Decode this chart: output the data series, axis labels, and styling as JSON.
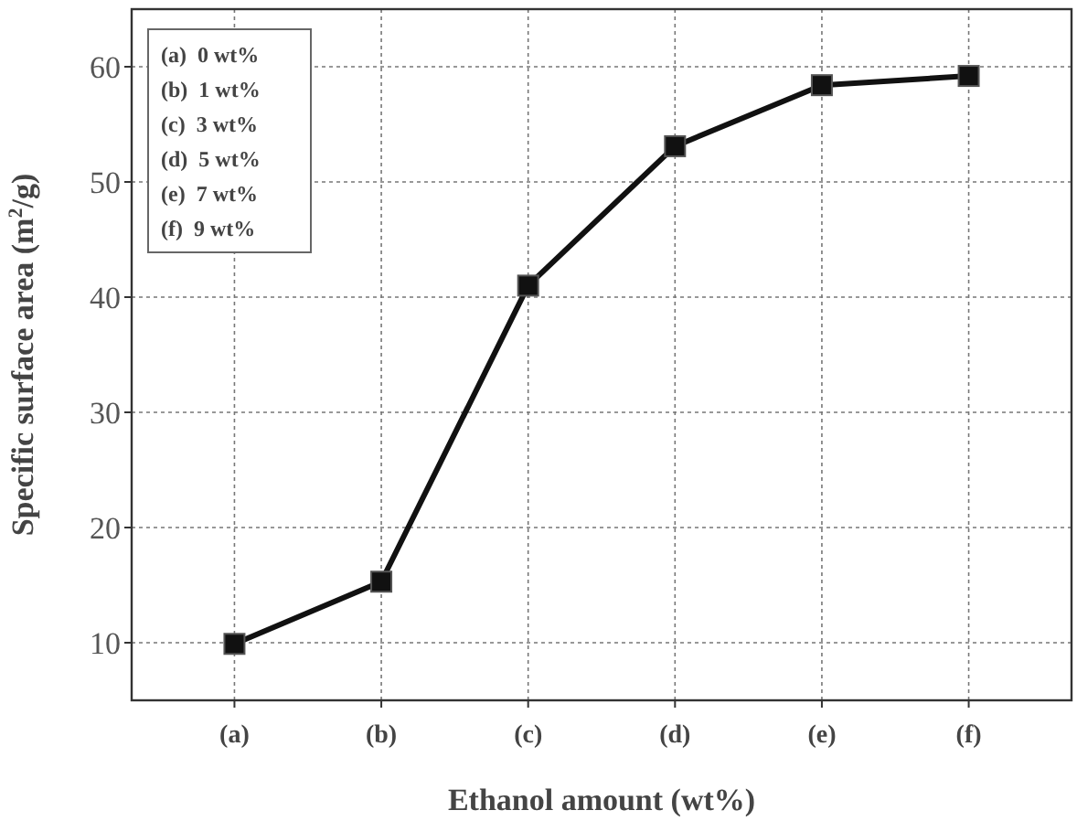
{
  "chart_data": {
    "type": "line",
    "xlabel": "Ethanol amount (wt%)",
    "ylabel": "Specific surface area (m$^{2}$/g)",
    "categories": [
      "(a)",
      "(b)",
      "(c)",
      "(d)",
      "(e)",
      "(f)"
    ],
    "series": [
      {
        "color": "#111111",
        "values": [
          9.9,
          15.3,
          41.0,
          53.1,
          58.4,
          59.2
        ]
      }
    ],
    "ylim": [
      5,
      65
    ],
    "yticks": [
      10,
      20,
      30,
      40,
      50,
      60
    ],
    "grid": true,
    "marker": "square",
    "line_style": "solid",
    "annotations": [
      "(a)  0 wt%",
      "(b)  1 wt%",
      "(c)  3 wt%",
      "(d)  5 wt%",
      "(e)  7 wt%",
      "(f)  9 wt%"
    ]
  }
}
